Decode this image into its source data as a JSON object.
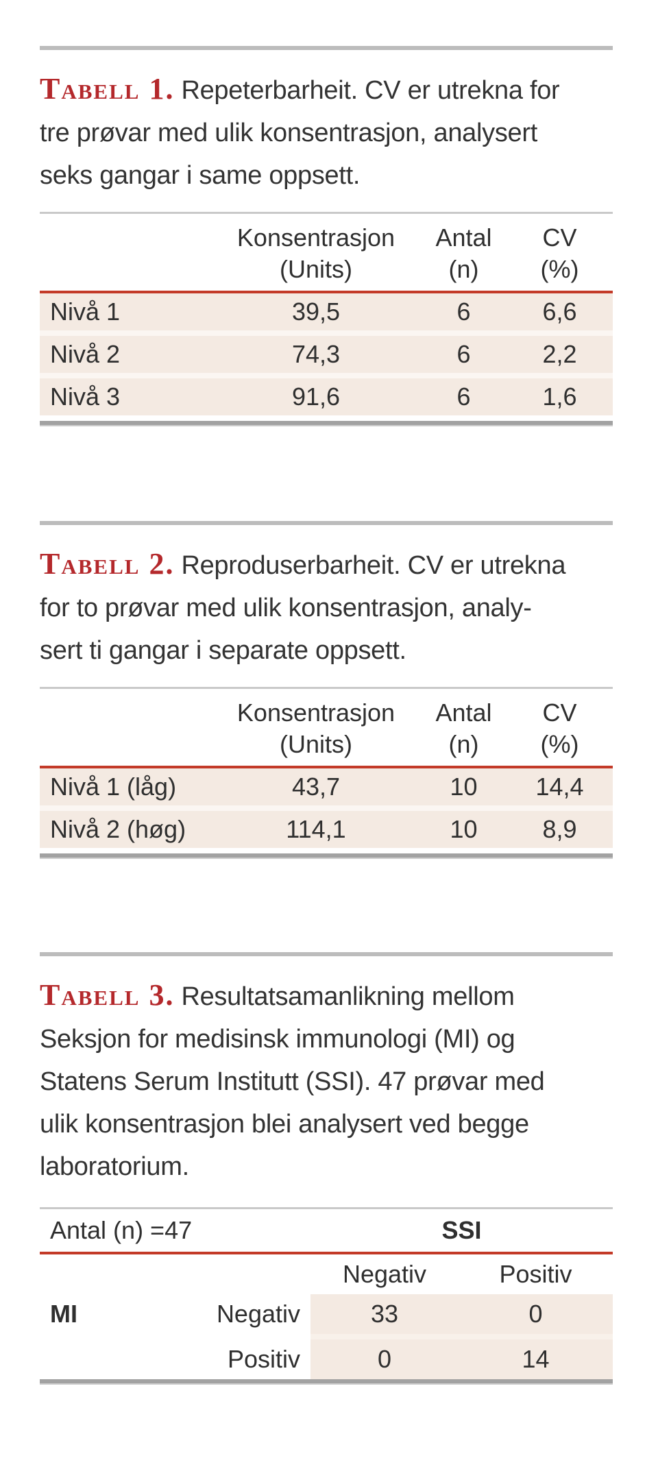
{
  "colors": {
    "accent_red_label": "#b4282b",
    "rule_red": "#c33a28",
    "rule_gray_section": "#bcbcbc",
    "rule_gray_bottom": "#a2a2a2",
    "row_beige": "#f4eae2",
    "text_dark": "#2f2f2f"
  },
  "sections": [
    {
      "label": "Tabell 1.",
      "caption_lines": [
        "Repeterbarheit. CV er utrekna for",
        "tre prøvar med ulik konsentrasjon, analysert",
        "seks gangar i same oppsett."
      ],
      "table": {
        "column_headers": [
          {
            "line1": "",
            "line2": ""
          },
          {
            "line1": "Konsentrasjon",
            "line2": "(Units)"
          },
          {
            "line1": "Antal",
            "line2": "(n)"
          },
          {
            "line1": "CV",
            "line2": "(%)"
          }
        ],
        "rows": [
          {
            "label": "Nivå 1",
            "konsentrasjon": "39,5",
            "antal": "6",
            "cv": "6,6"
          },
          {
            "label": "Nivå 2",
            "konsentrasjon": "74,3",
            "antal": "6",
            "cv": "2,2"
          },
          {
            "label": "Nivå 3",
            "konsentrasjon": "91,6",
            "antal": "6",
            "cv": "1,6"
          }
        ]
      }
    },
    {
      "label": "Tabell 2.",
      "caption_lines": [
        "Reproduserbarheit. CV er utrekna",
        "for to prøvar med ulik konsentrasjon, analy-",
        "sert ti gangar i separate oppsett."
      ],
      "table": {
        "column_headers": [
          {
            "line1": "",
            "line2": ""
          },
          {
            "line1": "Konsentrasjon",
            "line2": "(Units)"
          },
          {
            "line1": "Antal",
            "line2": "(n)"
          },
          {
            "line1": "CV",
            "line2": "(%)"
          }
        ],
        "rows": [
          {
            "label": "Nivå 1 (låg)",
            "konsentrasjon": "43,7",
            "antal": "10",
            "cv": "14,4"
          },
          {
            "label": "Nivå 2 (høg)",
            "konsentrasjon": "114,1",
            "antal": "10",
            "cv": "8,9"
          }
        ]
      }
    },
    {
      "label": "Tabell 3.",
      "caption_lines": [
        "Resultatsamanlikning mellom",
        "Seksjon for medisinsk immunologi (MI) og",
        "Statens Serum Institutt (SSI). 47 prøvar med",
        "ulik konsentrasjon blei analysert ved begge",
        "laboratorium."
      ],
      "table": {
        "left_header": "Antal (n) =47",
        "group_header": "SSI",
        "col_headers": [
          "Negativ",
          "Positiv"
        ],
        "row_group_label": "MI",
        "rows": [
          {
            "label": "Negativ",
            "negativ": "33",
            "positiv": "0"
          },
          {
            "label": "Positiv",
            "negativ": "0",
            "positiv": "14"
          }
        ]
      }
    }
  ]
}
